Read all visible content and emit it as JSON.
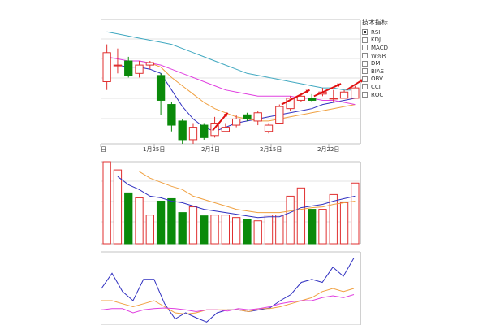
{
  "indicator_menu": {
    "title": "技术指标",
    "items": [
      {
        "label": "RSI",
        "checked": true
      },
      {
        "label": "KDJ",
        "checked": false
      },
      {
        "label": "MACD",
        "checked": false
      },
      {
        "label": "W%R",
        "checked": false
      },
      {
        "label": "DMI",
        "checked": false
      },
      {
        "label": "BIAS",
        "checked": false
      },
      {
        "label": "OBV",
        "checked": false
      },
      {
        "label": "CCI",
        "checked": false
      },
      {
        "label": "ROC",
        "checked": false
      }
    ]
  },
  "colors": {
    "up": "#e03030",
    "down": "#0a8a0a",
    "ma_short": "#3030c0",
    "ma_mid": "#f0a040",
    "ma_long": "#e040e0",
    "ma_xlong": "#40a8c0",
    "arrow": "#e01010",
    "grid": "#c8c8c8",
    "axis": "#888888"
  },
  "x_axis_labels": [
    "日",
    "1月25日",
    "2月1日",
    "2月15日",
    "2月22日"
  ],
  "chart_data": [
    {
      "type": "candlestick",
      "title": "",
      "candles": [
        {
          "o": 35,
          "c": 42,
          "h": 44,
          "l": 33
        },
        {
          "o": 39,
          "c": 39,
          "h": 43,
          "l": 37
        },
        {
          "o": 40,
          "c": 36.5,
          "h": 41,
          "l": 36
        },
        {
          "o": 37,
          "c": 39,
          "h": 40,
          "l": 36
        },
        {
          "o": 39,
          "c": 39.6,
          "h": 40,
          "l": 38
        },
        {
          "o": 36.5,
          "c": 30.5,
          "h": 37,
          "l": 27
        },
        {
          "o": 29.5,
          "c": 24.5,
          "h": 30,
          "l": 23
        },
        {
          "o": 25.5,
          "c": 21,
          "h": 26,
          "l": 20
        },
        {
          "o": 21,
          "c": 24,
          "h": 25,
          "l": 20
        },
        {
          "o": 24.5,
          "c": 21.5,
          "h": 25,
          "l": 21
        },
        {
          "o": 22,
          "c": 25,
          "h": 26.5,
          "l": 21.5
        },
        {
          "o": 23,
          "c": 24,
          "h": 25,
          "l": 23
        },
        {
          "o": 24.5,
          "c": 26,
          "h": 27,
          "l": 24
        },
        {
          "o": 27,
          "c": 26,
          "h": 27.5,
          "l": 25.5
        },
        {
          "o": 25.5,
          "c": 27.5,
          "h": 28,
          "l": 24.5
        },
        {
          "o": 23,
          "c": 24.5,
          "h": 25,
          "l": 22.5
        },
        {
          "o": 25,
          "c": 29,
          "h": 29.5,
          "l": 25
        },
        {
          "o": 28.5,
          "c": 31,
          "h": 31.5,
          "l": 28
        },
        {
          "o": 30.5,
          "c": 31.5,
          "h": 32,
          "l": 30
        },
        {
          "o": 31,
          "c": 30.5,
          "h": 32,
          "l": 30
        },
        {
          "o": 32,
          "c": 32.5,
          "h": 33.5,
          "l": 31.5
        },
        {
          "o": 31,
          "c": 31,
          "h": 33,
          "l": 30
        },
        {
          "o": 31,
          "c": 32.5,
          "h": 33,
          "l": 31
        },
        {
          "o": 31,
          "c": 33.5,
          "h": 34,
          "l": 31
        }
      ],
      "ma": [
        {
          "name": "",
          "color_key": "ma_short",
          "values": [
            null,
            39,
            38.5,
            38.5,
            38,
            37,
            33,
            29,
            26,
            24,
            23,
            24,
            25,
            25.5,
            26,
            26.5,
            27,
            27.5,
            28,
            28.5,
            29.5,
            30,
            30.5,
            31
          ]
        },
        {
          "name": "",
          "color_key": "ma_mid",
          "values": [
            null,
            null,
            null,
            40,
            39.5,
            38.5,
            36,
            34,
            32,
            30,
            28.5,
            27.5,
            26.5,
            26,
            25.5,
            25.5,
            26,
            26.5,
            27,
            27.5,
            28,
            28.5,
            29,
            29.5
          ]
        },
        {
          "name": "",
          "color_key": "ma_long",
          "values": [
            41,
            40.5,
            40,
            40,
            39.5,
            39,
            38,
            37,
            36,
            35,
            34,
            33,
            32.5,
            32,
            31.5,
            31.5,
            31.5,
            31.5,
            31,
            31,
            30.5,
            30.5,
            30,
            29.5
          ]
        },
        {
          "name": "",
          "color_key": "ma_xlong",
          "values": [
            47,
            46.5,
            46,
            45.5,
            45,
            44.5,
            44,
            43,
            42,
            41,
            40,
            39,
            38,
            37,
            36.5,
            36,
            35.5,
            35,
            34.5,
            34,
            33.5,
            33.5,
            33,
            33
          ]
        }
      ],
      "ylim": [
        20,
        50
      ],
      "grid": true
    },
    {
      "type": "bar",
      "title": "",
      "values": [
        100,
        90,
        62,
        56,
        35,
        52,
        55,
        38,
        45,
        34,
        35,
        35,
        32,
        30,
        28,
        35,
        35,
        58,
        68,
        42,
        42,
        60,
        50,
        74
      ],
      "ma": [
        {
          "name": "",
          "color_key": "ma_short",
          "values": [
            null,
            82,
            72,
            66,
            58,
            56,
            52,
            50,
            46,
            42,
            40,
            38,
            36,
            34,
            32,
            33,
            33,
            38,
            44,
            46,
            48,
            52,
            55,
            58
          ]
        },
        {
          "name": "",
          "color_key": "ma_mid",
          "values": [
            null,
            null,
            null,
            88,
            80,
            75,
            70,
            66,
            58,
            54,
            50,
            46,
            42,
            40,
            38,
            38,
            38,
            40,
            42,
            44,
            45,
            48,
            50,
            52
          ]
        }
      ],
      "ylim": [
        0,
        100
      ],
      "grid": true
    },
    {
      "type": "line",
      "title": "",
      "series": [
        {
          "name": "",
          "color_key": "ma_short",
          "values": [
            30,
            55,
            25,
            10,
            45,
            45,
            5,
            -20,
            -10,
            -18,
            -25,
            -10,
            -5,
            -5,
            -8,
            -5,
            -2,
            10,
            20,
            40,
            45,
            40,
            65,
            50,
            80
          ]
        },
        {
          "name": "",
          "color_key": "ma_mid",
          "values": [
            10,
            10,
            5,
            0,
            5,
            10,
            0,
            -10,
            -12,
            -10,
            -5,
            -5,
            -5,
            -5,
            -8,
            -3,
            -3,
            0,
            5,
            10,
            15,
            25,
            30,
            25,
            30
          ]
        },
        {
          "name": "",
          "color_key": "ma_long",
          "values": [
            -5,
            -3,
            -3,
            -10,
            -5,
            -3,
            -2,
            -3,
            -5,
            -8,
            -5,
            -5,
            -7,
            -3,
            -5,
            -3,
            0,
            5,
            8,
            10,
            10,
            15,
            18,
            15,
            20
          ]
        }
      ],
      "ylim": [
        -30,
        90
      ],
      "grid": false
    }
  ]
}
